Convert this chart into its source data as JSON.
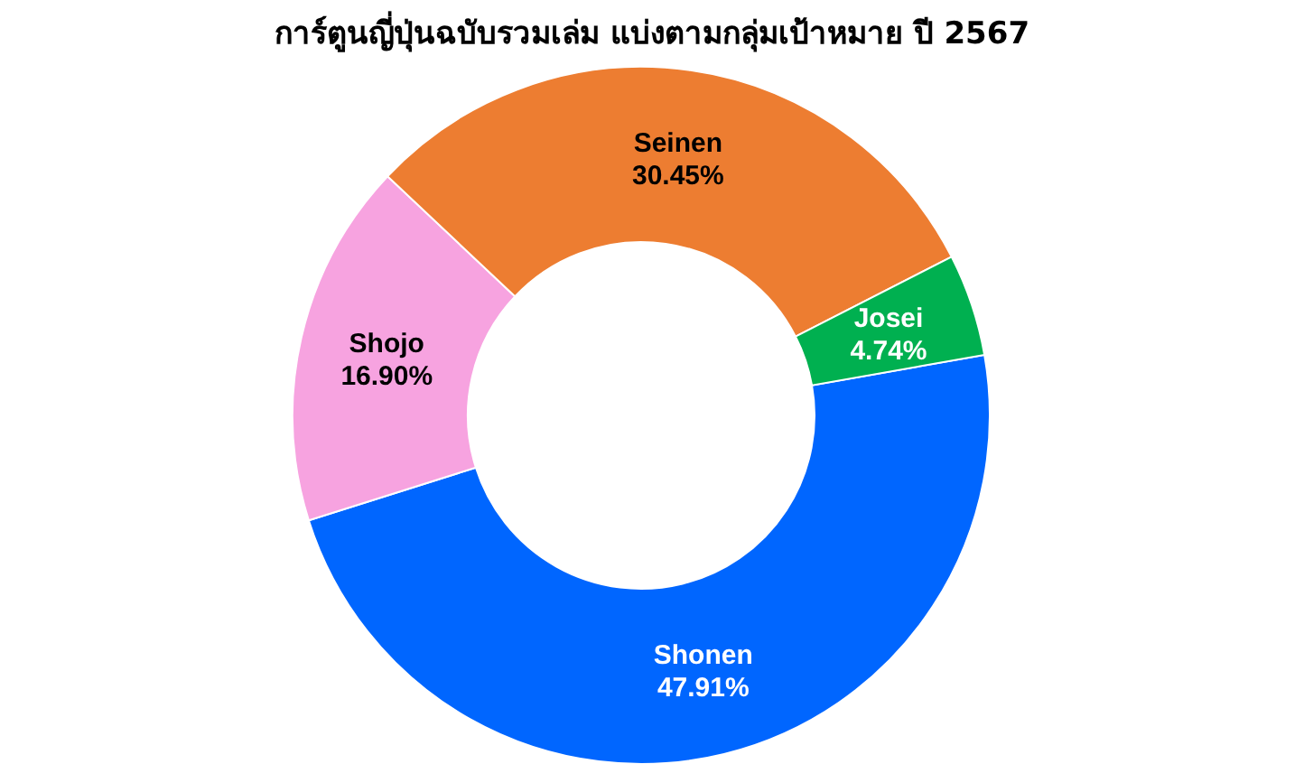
{
  "chart_data": {
    "type": "donut",
    "title": "การ์ตูนญี่ปุ่นฉบับรวมเล่ม แบ่งตามกลุ่มเป้าหมาย ปี 2567",
    "categories": [
      "Shonen",
      "Shojo",
      "Seinen",
      "Josei"
    ],
    "values": [
      47.91,
      16.9,
      30.45,
      4.74
    ],
    "colors": [
      "#0066ff",
      "#f7a3e0",
      "#ed7d31",
      "#00b050"
    ],
    "value_labels": [
      "47.91%",
      "16.90%",
      "30.45%",
      "4.74%"
    ]
  }
}
